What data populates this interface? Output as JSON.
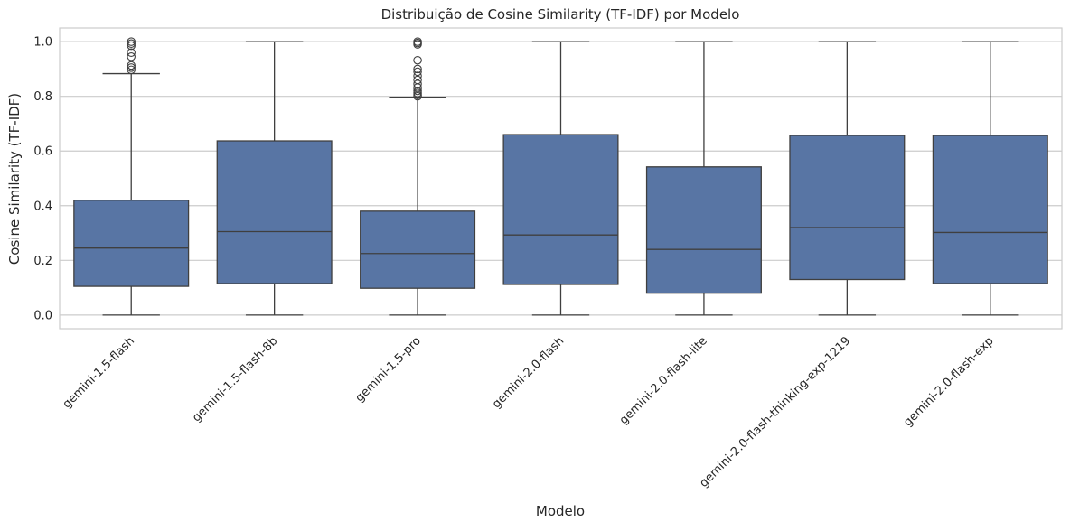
{
  "chart_data": {
    "type": "box",
    "title": "Distribuição de Cosine Similarity (TF-IDF) por Modelo",
    "xlabel": "Modelo",
    "ylabel": "Cosine Similarity (TF-IDF)",
    "ylim": [
      -0.05,
      1.05
    ],
    "yticks": [
      0.0,
      0.2,
      0.4,
      0.6,
      0.8,
      1.0
    ],
    "ytick_labels": [
      "0.0",
      "0.2",
      "0.4",
      "0.6",
      "0.8",
      "1.0"
    ],
    "grid": true,
    "box_color": "#5875a4",
    "line_color": "#3f3f3f",
    "categories": [
      "gemini-1.5-flash",
      "gemini-1.5-flash-8b",
      "gemini-1.5-pro",
      "gemini-2.0-flash",
      "gemini-2.0-flash-lite",
      "gemini-2.0-flash-thinking-exp-1219",
      "gemini-2.0-flash-exp"
    ],
    "boxes": [
      {
        "whisker_low": 0.0,
        "q1": 0.105,
        "median": 0.245,
        "q3": 0.42,
        "whisker_high": 0.883,
        "outliers": [
          0.897,
          0.905,
          0.913,
          0.945,
          0.96,
          0.985,
          0.993,
          1.0
        ]
      },
      {
        "whisker_low": 0.0,
        "q1": 0.115,
        "median": 0.305,
        "q3": 0.637,
        "whisker_high": 1.0,
        "outliers": []
      },
      {
        "whisker_low": 0.0,
        "q1": 0.098,
        "median": 0.225,
        "q3": 0.38,
        "whisker_high": 0.797,
        "outliers": [
          0.8,
          0.805,
          0.812,
          0.82,
          0.832,
          0.845,
          0.86,
          0.875,
          0.89,
          0.9,
          0.932,
          0.99,
          0.995,
          1.0
        ]
      },
      {
        "whisker_low": 0.0,
        "q1": 0.112,
        "median": 0.293,
        "q3": 0.66,
        "whisker_high": 1.0,
        "outliers": []
      },
      {
        "whisker_low": 0.0,
        "q1": 0.08,
        "median": 0.24,
        "q3": 0.542,
        "whisker_high": 1.0,
        "outliers": []
      },
      {
        "whisker_low": 0.0,
        "q1": 0.13,
        "median": 0.32,
        "q3": 0.657,
        "whisker_high": 1.0,
        "outliers": []
      },
      {
        "whisker_low": 0.0,
        "q1": 0.115,
        "median": 0.302,
        "q3": 0.657,
        "whisker_high": 1.0,
        "outliers": []
      }
    ]
  }
}
